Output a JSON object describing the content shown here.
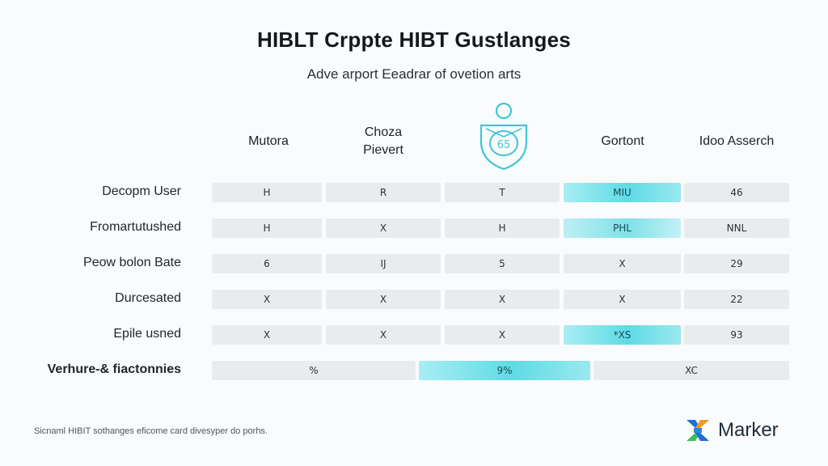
{
  "title": "HIBLT Crppte HIBT Gustlanges",
  "subtitle": "Adve arport Eeadrar of ovetion arts",
  "columns": [
    "Mutora",
    "Choza\nPievert",
    "Gortont",
    "Idoo Asserch"
  ],
  "rows": [
    {
      "label": "Decopm User",
      "cells": [
        "H",
        "R",
        "T",
        "MIU",
        "46"
      ]
    },
    {
      "label": "Fromartutushed",
      "cells": [
        "H",
        "X",
        "H",
        "PHL",
        "NNL"
      ]
    },
    {
      "label": "Peow bolon Bate",
      "cells": [
        "6",
        "IJ",
        "5",
        "X",
        "29"
      ]
    },
    {
      "label": "Durcesated",
      "cells": [
        "X",
        "X",
        "X",
        "X",
        "22"
      ]
    },
    {
      "label": "Epile usned",
      "cells": [
        "X",
        "X",
        "X",
        "*XS",
        "93"
      ]
    }
  ],
  "summary": {
    "label": "Verhure-& fiactonnies",
    "cells": [
      "%",
      "9%",
      "XC"
    ]
  },
  "footnote": "Sicnaml HIBIT sothanges eficome card divesyper do porhs.",
  "brand": {
    "name": "Marker"
  },
  "colors": {
    "accent": "#4fd6e0",
    "cell_bg": "#e9ecef",
    "logo_blue": "#1f6fd0",
    "logo_orange": "#f39a1e",
    "logo_green": "#3bbf5c"
  }
}
